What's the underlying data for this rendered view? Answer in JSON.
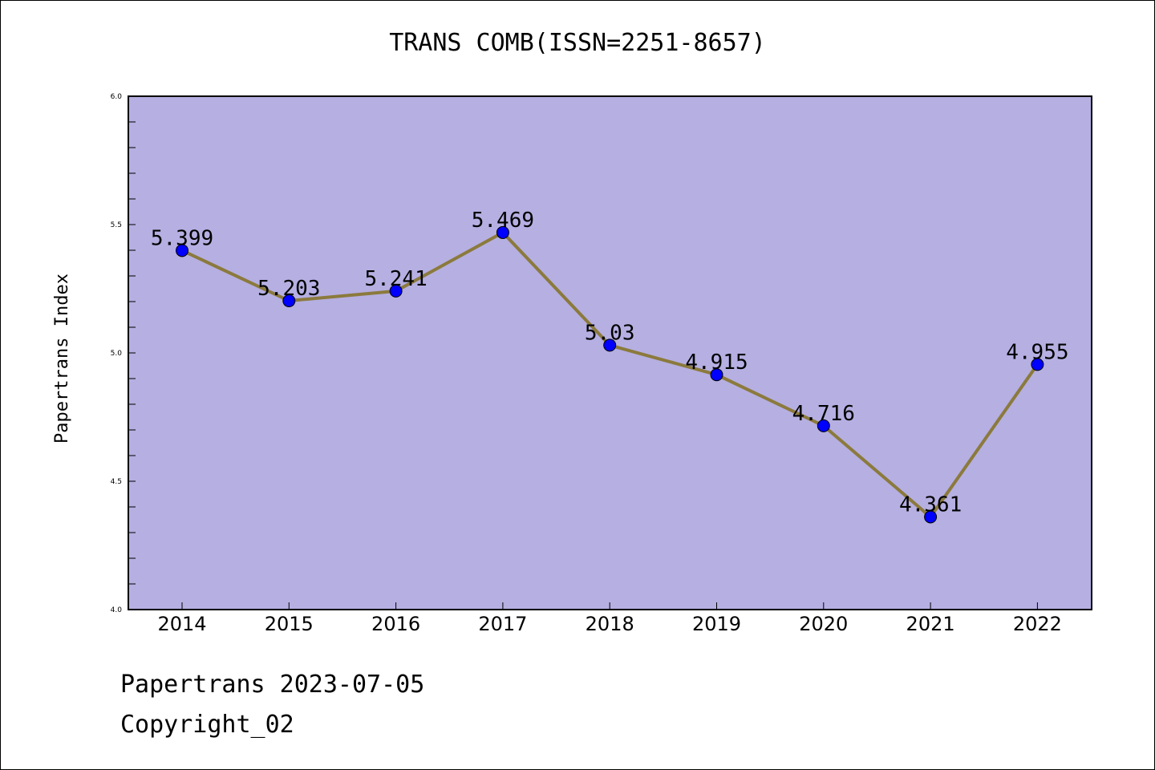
{
  "footer": {
    "date_line": "Papertrans 2023-07-05",
    "copyright_line": "Copyright_02"
  },
  "colors": {
    "plot_background": "#b5afe2",
    "line": "#8b7a3c",
    "marker": "#0000ff"
  },
  "chart_data": {
    "type": "line",
    "title": "TRANS COMB(ISSN=2251-8657)",
    "xlabel": "",
    "ylabel": "Papertrans Index",
    "ylim": [
      4.0,
      6.0
    ],
    "yticks": [
      "4.0",
      "4.5",
      "5.0",
      "5.5",
      "6.0"
    ],
    "grid": false,
    "categories": [
      "2014",
      "2015",
      "2016",
      "2017",
      "2018",
      "2019",
      "2020",
      "2021",
      "2022"
    ],
    "values": [
      5.399,
      5.203,
      5.241,
      5.469,
      5.03,
      4.915,
      4.716,
      4.361,
      4.955
    ],
    "data_labels": [
      "5.399",
      "5.203",
      "5.241",
      "5.469",
      "5.03",
      "4.915",
      "4.716",
      "4.361",
      "4.955"
    ]
  }
}
